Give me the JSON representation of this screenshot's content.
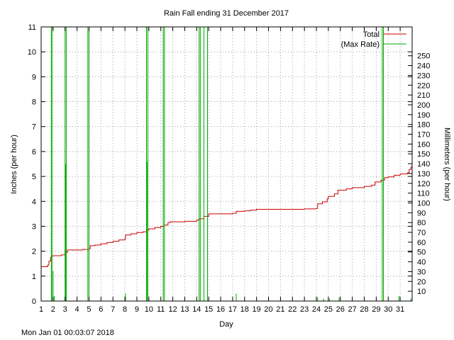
{
  "chart_data": {
    "type": "line",
    "title": "Rain Fall ending 31 December 2017",
    "xlabel": "Day",
    "ylabel": "Inches (per hour)",
    "y2label": "Millimeters (per hour)",
    "xlim": [
      1,
      32
    ],
    "ylim": [
      0,
      11
    ],
    "y2lim": [
      0,
      279.4
    ],
    "x_ticks": [
      "1",
      "2",
      "3",
      "4",
      "5",
      "6",
      "7",
      "8",
      "9",
      "10",
      "11",
      "12",
      "13",
      "14",
      "15",
      "16",
      "17",
      "18",
      "19",
      "20",
      "21",
      "22",
      "23",
      "24",
      "25",
      "26",
      "27",
      "28",
      "29",
      "30",
      "31"
    ],
    "y_ticks": [
      0,
      1,
      2,
      3,
      4,
      5,
      6,
      7,
      8,
      9,
      10,
      11
    ],
    "y2_ticks": [
      10,
      20,
      30,
      40,
      50,
      60,
      70,
      80,
      90,
      100,
      110,
      120,
      130,
      140,
      150,
      160,
      170,
      180,
      190,
      200,
      210,
      220,
      230,
      240,
      250
    ],
    "grid": true,
    "legend_position": "top-right",
    "series": [
      {
        "name": "Total",
        "color": "#cc0000",
        "points": [
          [
            1.0,
            1.38
          ],
          [
            1.5,
            1.38
          ],
          [
            1.55,
            1.45
          ],
          [
            1.65,
            1.6
          ],
          [
            1.8,
            1.75
          ],
          [
            1.9,
            1.82
          ],
          [
            2.5,
            1.82
          ],
          [
            2.7,
            1.85
          ],
          [
            3.0,
            1.95
          ],
          [
            3.2,
            2.05
          ],
          [
            4.5,
            2.07
          ],
          [
            5.0,
            2.1
          ],
          [
            5.1,
            2.22
          ],
          [
            5.5,
            2.25
          ],
          [
            6.0,
            2.3
          ],
          [
            6.5,
            2.35
          ],
          [
            7.0,
            2.4
          ],
          [
            7.5,
            2.45
          ],
          [
            8.0,
            2.5
          ],
          [
            8.05,
            2.65
          ],
          [
            8.5,
            2.7
          ],
          [
            9.0,
            2.75
          ],
          [
            9.5,
            2.78
          ],
          [
            9.8,
            2.85
          ],
          [
            10.0,
            2.9
          ],
          [
            10.5,
            2.95
          ],
          [
            11.0,
            3.0
          ],
          [
            11.3,
            3.05
          ],
          [
            11.6,
            3.15
          ],
          [
            11.8,
            3.18
          ],
          [
            13.0,
            3.2
          ],
          [
            14.0,
            3.25
          ],
          [
            14.2,
            3.3
          ],
          [
            14.6,
            3.4
          ],
          [
            15.0,
            3.5
          ],
          [
            16.0,
            3.5
          ],
          [
            17.0,
            3.52
          ],
          [
            17.3,
            3.6
          ],
          [
            18.0,
            3.62
          ],
          [
            18.5,
            3.65
          ],
          [
            19.0,
            3.68
          ],
          [
            23.0,
            3.7
          ],
          [
            24.0,
            3.72
          ],
          [
            24.1,
            3.9
          ],
          [
            24.5,
            3.98
          ],
          [
            24.9,
            4.1
          ],
          [
            25.0,
            4.2
          ],
          [
            25.5,
            4.3
          ],
          [
            25.8,
            4.45
          ],
          [
            26.5,
            4.5
          ],
          [
            27.0,
            4.55
          ],
          [
            28.0,
            4.6
          ],
          [
            28.6,
            4.65
          ],
          [
            28.9,
            4.78
          ],
          [
            29.4,
            4.85
          ],
          [
            29.7,
            4.95
          ],
          [
            30.0,
            4.98
          ],
          [
            30.5,
            5.05
          ],
          [
            31.0,
            5.1
          ],
          [
            31.6,
            5.15
          ],
          [
            31.75,
            5.28
          ],
          [
            31.9,
            5.38
          ],
          [
            32.0,
            5.4
          ]
        ]
      },
      {
        "name": "(Max Rate)",
        "color": "#00aa00",
        "spikes": [
          [
            1.85,
            11
          ],
          [
            1.9,
            11
          ],
          [
            2.0,
            1.2
          ],
          [
            2.1,
            0.2
          ],
          [
            3.0,
            11
          ],
          [
            3.05,
            5.5
          ],
          [
            3.1,
            11
          ],
          [
            4.9,
            11
          ],
          [
            5.0,
            11
          ],
          [
            8.05,
            0.3
          ],
          [
            9.8,
            11
          ],
          [
            9.85,
            5.6
          ],
          [
            9.9,
            11
          ],
          [
            11.2,
            11
          ],
          [
            11.3,
            11
          ],
          [
            14.2,
            11
          ],
          [
            14.3,
            11
          ],
          [
            14.6,
            11
          ],
          [
            14.9,
            11
          ],
          [
            17.3,
            0.3
          ],
          [
            24.1,
            0.15
          ],
          [
            24.6,
            0.1
          ],
          [
            25.1,
            0.1
          ],
          [
            25.9,
            0.15
          ],
          [
            29.5,
            11
          ],
          [
            29.6,
            11
          ],
          [
            30.9,
            0.2
          ],
          [
            31.9,
            0.1
          ]
        ]
      }
    ]
  },
  "footer": {
    "timestamp": "Mon Jan 01 00:03:07 2018"
  }
}
